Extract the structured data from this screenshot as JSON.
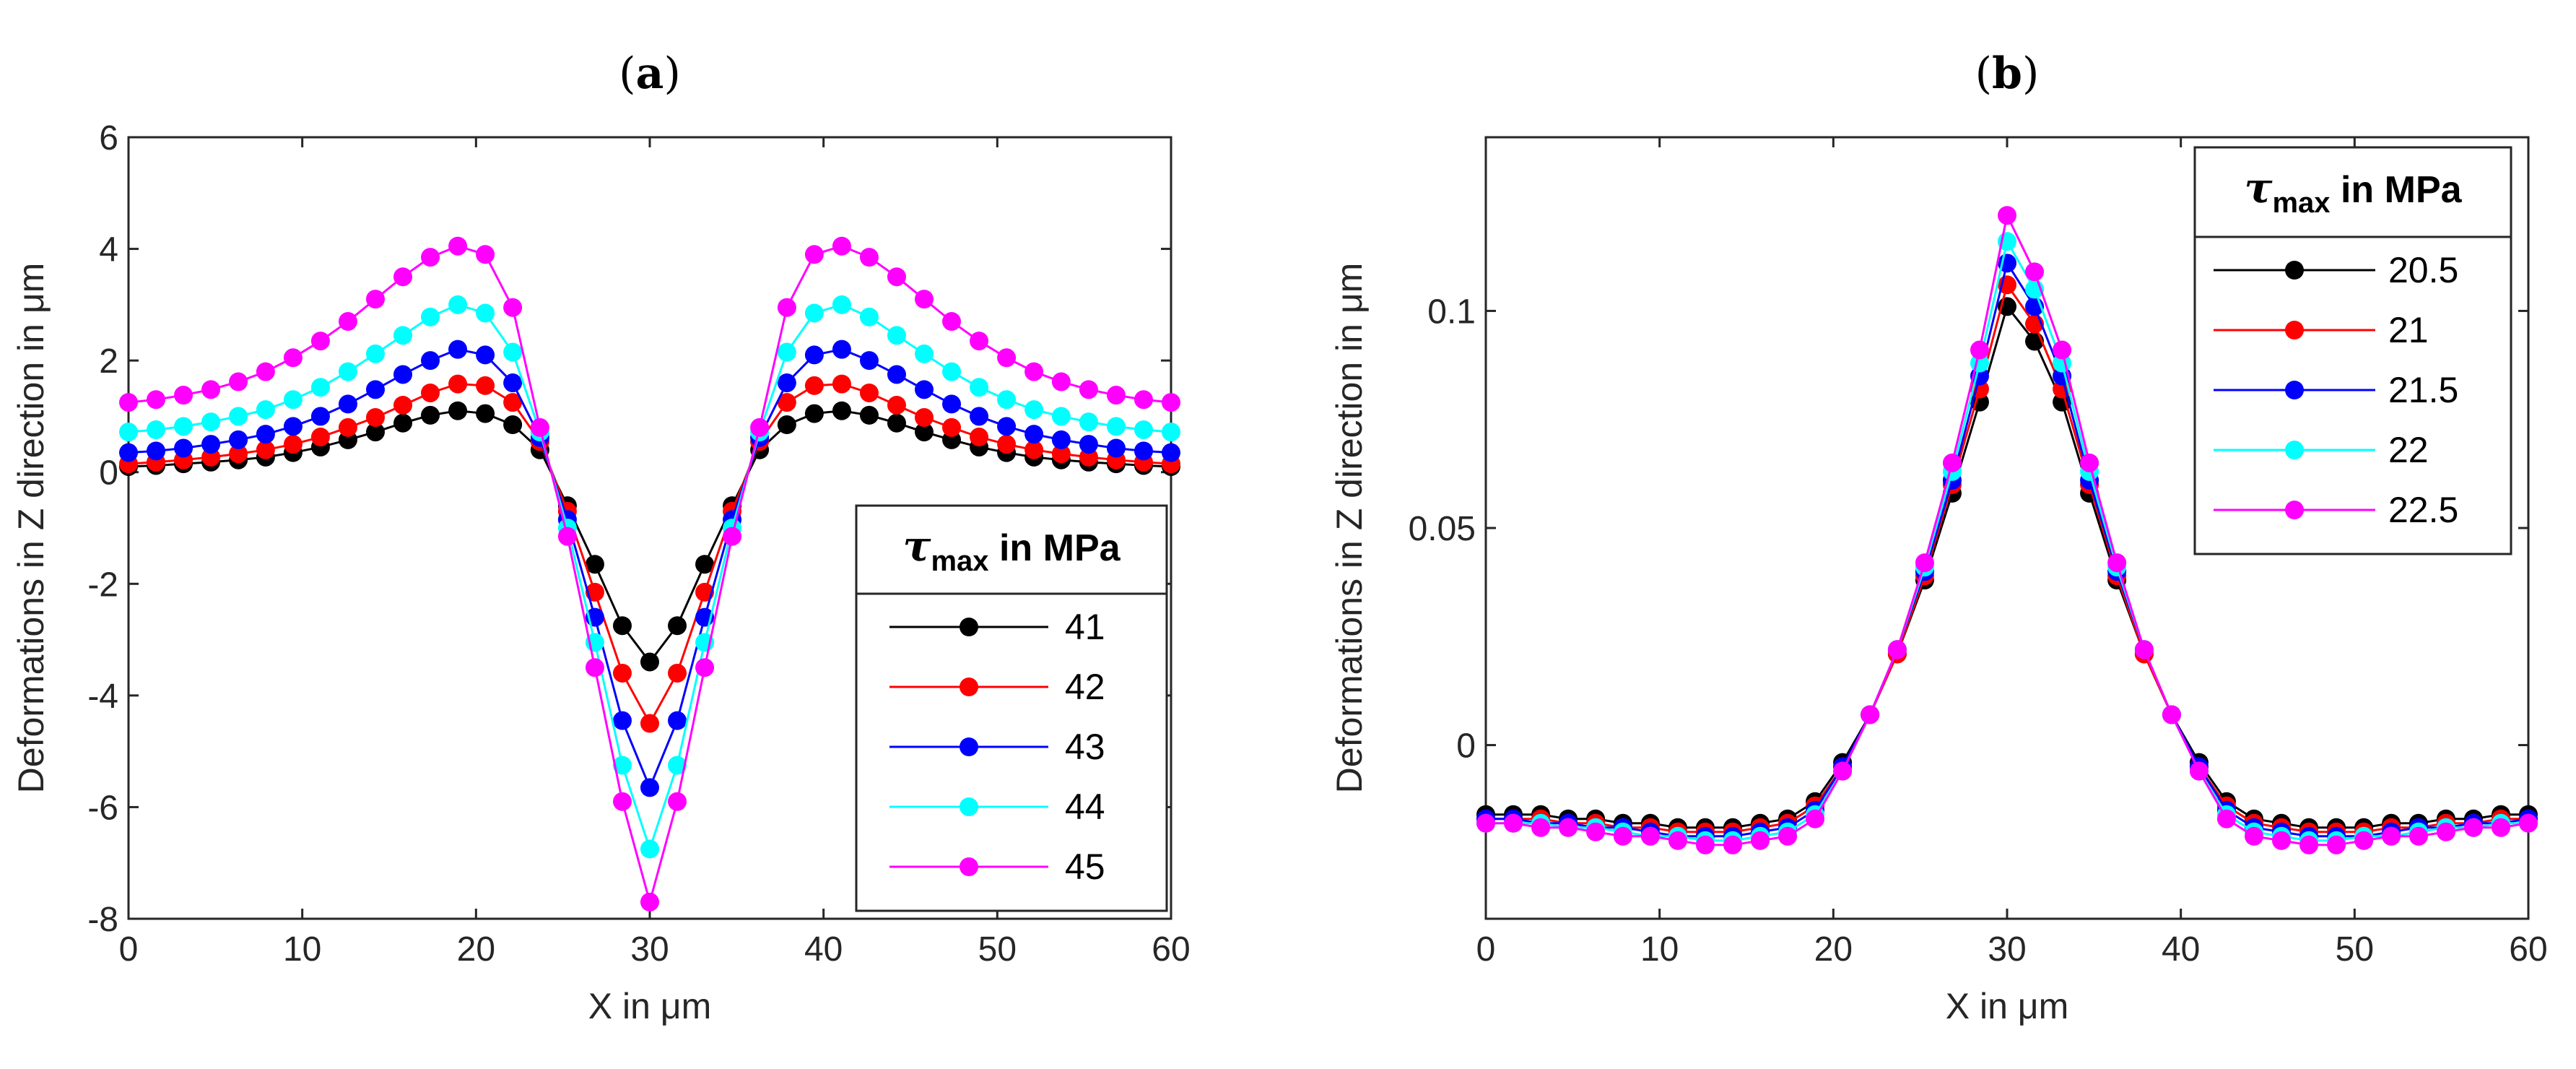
{
  "chart_data": [
    {
      "type": "line",
      "panel_label": "a",
      "title": "(a)",
      "xlabel": "X in μm",
      "ylabel": "Deformations in Z direction in μm",
      "xlim": [
        0,
        60
      ],
      "ylim": [
        -8,
        6
      ],
      "xticks": [
        0,
        10,
        20,
        30,
        40,
        50,
        60
      ],
      "xtick_labels": [
        "0",
        "10",
        "20",
        "30",
        "40",
        "50",
        "60"
      ],
      "yticks": [
        -8,
        -6,
        -4,
        -2,
        0,
        2,
        4,
        6
      ],
      "ytick_labels": [
        "-8",
        "-6",
        "-4",
        "-2",
        "0",
        "2",
        "4",
        "6"
      ],
      "grid": false,
      "legend": {
        "title_symbol": "τ",
        "title_subscript": "max",
        "title_suffix": " in MPa",
        "placement": "bottom-right"
      },
      "x": [
        0,
        1.58,
        3.16,
        4.74,
        6.32,
        7.89,
        9.47,
        11.05,
        12.63,
        14.21,
        15.79,
        17.37,
        18.95,
        20.53,
        22.11,
        23.68,
        25.26,
        26.84,
        28.42,
        30.0,
        31.58,
        33.16,
        34.74,
        36.32,
        37.89,
        39.47,
        41.05,
        42.63,
        44.21,
        45.79,
        47.37,
        48.95,
        50.53,
        52.11,
        53.68,
        55.26,
        56.84,
        58.42,
        60.0
      ],
      "series": [
        {
          "name": "41",
          "color": "#000000",
          "values": [
            0.1,
            0.12,
            0.15,
            0.18,
            0.22,
            0.27,
            0.35,
            0.45,
            0.58,
            0.72,
            0.88,
            1.02,
            1.1,
            1.05,
            0.85,
            0.4,
            -0.6,
            -1.65,
            -2.75,
            -3.4,
            -2.75,
            -1.65,
            -0.6,
            0.4,
            0.85,
            1.05,
            1.1,
            1.02,
            0.88,
            0.72,
            0.58,
            0.45,
            0.35,
            0.27,
            0.22,
            0.18,
            0.15,
            0.12,
            0.1
          ]
        },
        {
          "name": "42",
          "color": "#ff0000",
          "values": [
            0.15,
            0.18,
            0.22,
            0.27,
            0.33,
            0.4,
            0.5,
            0.63,
            0.8,
            0.98,
            1.2,
            1.42,
            1.58,
            1.55,
            1.25,
            0.55,
            -0.7,
            -2.15,
            -3.6,
            -4.5,
            -3.6,
            -2.15,
            -0.7,
            0.55,
            1.25,
            1.55,
            1.58,
            1.42,
            1.2,
            0.98,
            0.8,
            0.63,
            0.5,
            0.4,
            0.33,
            0.27,
            0.22,
            0.18,
            0.15
          ]
        },
        {
          "name": "43",
          "color": "#0000ff",
          "values": [
            0.35,
            0.38,
            0.43,
            0.5,
            0.58,
            0.68,
            0.82,
            1.0,
            1.22,
            1.48,
            1.75,
            2.0,
            2.2,
            2.1,
            1.6,
            0.62,
            -0.85,
            -2.6,
            -4.45,
            -5.65,
            -4.45,
            -2.6,
            -0.85,
            0.62,
            1.6,
            2.1,
            2.2,
            2.0,
            1.75,
            1.48,
            1.22,
            1.0,
            0.82,
            0.68,
            0.58,
            0.5,
            0.43,
            0.38,
            0.35
          ]
        },
        {
          "name": "44",
          "color": "#00ffff",
          "values": [
            0.72,
            0.76,
            0.82,
            0.9,
            1.0,
            1.12,
            1.3,
            1.52,
            1.8,
            2.12,
            2.45,
            2.78,
            3.0,
            2.85,
            2.15,
            0.72,
            -1.0,
            -3.05,
            -5.25,
            -6.75,
            -5.25,
            -3.05,
            -1.0,
            0.72,
            2.15,
            2.85,
            3.0,
            2.78,
            2.45,
            2.12,
            1.8,
            1.52,
            1.3,
            1.12,
            1.0,
            0.9,
            0.82,
            0.76,
            0.72
          ]
        },
        {
          "name": "45",
          "color": "#ff00ff",
          "values": [
            1.25,
            1.3,
            1.38,
            1.48,
            1.62,
            1.8,
            2.05,
            2.35,
            2.7,
            3.1,
            3.5,
            3.85,
            4.05,
            3.9,
            2.95,
            0.8,
            -1.15,
            -3.5,
            -5.9,
            -7.7,
            -5.9,
            -3.5,
            -1.15,
            0.8,
            2.95,
            3.9,
            4.05,
            3.85,
            3.5,
            3.1,
            2.7,
            2.35,
            2.05,
            1.8,
            1.62,
            1.48,
            1.38,
            1.3,
            1.25
          ]
        }
      ]
    },
    {
      "type": "line",
      "panel_label": "b",
      "title": "(b)",
      "xlabel": "X in μm",
      "ylabel": "Deformations in Z direction in μm",
      "xlim": [
        0,
        60
      ],
      "ylim": [
        -0.04,
        0.14
      ],
      "xticks": [
        0,
        10,
        20,
        30,
        40,
        50,
        60
      ],
      "xtick_labels": [
        "0",
        "10",
        "20",
        "30",
        "40",
        "50",
        "60"
      ],
      "yticks": [
        0,
        0.05,
        0.1
      ],
      "ytick_labels": [
        "0",
        "0.05",
        "0.1"
      ],
      "grid": false,
      "legend": {
        "title_symbol": "τ",
        "title_subscript": "max",
        "title_suffix": " in MPa",
        "placement": "top-right"
      },
      "x": [
        0,
        1.58,
        3.16,
        4.74,
        6.32,
        7.89,
        9.47,
        11.05,
        12.63,
        14.21,
        15.79,
        17.37,
        18.95,
        20.53,
        22.11,
        23.68,
        25.26,
        26.84,
        28.42,
        30.0,
        31.58,
        33.16,
        34.74,
        36.32,
        37.89,
        39.47,
        41.05,
        42.63,
        44.21,
        45.79,
        47.37,
        48.95,
        50.53,
        52.11,
        53.68,
        55.26,
        56.84,
        58.42,
        60.0
      ],
      "series": [
        {
          "name": "20.5",
          "color": "#000000",
          "values": [
            -0.016,
            -0.016,
            -0.016,
            -0.017,
            -0.017,
            -0.018,
            -0.018,
            -0.019,
            -0.019,
            -0.019,
            -0.018,
            -0.017,
            -0.013,
            -0.004,
            0.007,
            0.021,
            0.038,
            0.058,
            0.079,
            0.101,
            0.093,
            0.079,
            0.058,
            0.038,
            0.021,
            0.007,
            -0.004,
            -0.013,
            -0.017,
            -0.018,
            -0.019,
            -0.019,
            -0.019,
            -0.018,
            -0.018,
            -0.017,
            -0.017,
            -0.016,
            -0.016
          ]
        },
        {
          "name": "21",
          "color": "#ff0000",
          "values": [
            -0.017,
            -0.017,
            -0.017,
            -0.018,
            -0.018,
            -0.019,
            -0.019,
            -0.02,
            -0.02,
            -0.02,
            -0.019,
            -0.018,
            -0.014,
            -0.005,
            0.007,
            0.021,
            0.039,
            0.06,
            0.082,
            0.106,
            0.097,
            0.082,
            0.06,
            0.039,
            0.021,
            0.007,
            -0.005,
            -0.014,
            -0.018,
            -0.019,
            -0.02,
            -0.02,
            -0.02,
            -0.019,
            -0.019,
            -0.018,
            -0.018,
            -0.017,
            -0.017
          ]
        },
        {
          "name": "21.5",
          "color": "#0000ff",
          "values": [
            -0.017,
            -0.017,
            -0.018,
            -0.018,
            -0.019,
            -0.019,
            -0.02,
            -0.021,
            -0.021,
            -0.021,
            -0.02,
            -0.019,
            -0.015,
            -0.005,
            0.007,
            0.022,
            0.04,
            0.061,
            0.085,
            0.111,
            0.101,
            0.085,
            0.061,
            0.04,
            0.022,
            0.007,
            -0.005,
            -0.015,
            -0.019,
            -0.02,
            -0.021,
            -0.021,
            -0.021,
            -0.02,
            -0.019,
            -0.019,
            -0.018,
            -0.018,
            -0.017
          ]
        },
        {
          "name": "22",
          "color": "#00ffff",
          "values": [
            -0.018,
            -0.018,
            -0.018,
            -0.019,
            -0.019,
            -0.02,
            -0.021,
            -0.021,
            -0.022,
            -0.022,
            -0.021,
            -0.02,
            -0.016,
            -0.006,
            0.007,
            0.022,
            0.041,
            0.063,
            0.088,
            0.116,
            0.105,
            0.088,
            0.063,
            0.041,
            0.022,
            0.007,
            -0.006,
            -0.016,
            -0.02,
            -0.021,
            -0.022,
            -0.022,
            -0.021,
            -0.021,
            -0.02,
            -0.019,
            -0.019,
            -0.018,
            -0.018
          ]
        },
        {
          "name": "22.5",
          "color": "#ff00ff",
          "values": [
            -0.018,
            -0.018,
            -0.019,
            -0.019,
            -0.02,
            -0.021,
            -0.021,
            -0.022,
            -0.023,
            -0.023,
            -0.022,
            -0.021,
            -0.017,
            -0.006,
            0.007,
            0.022,
            0.042,
            0.065,
            0.091,
            0.122,
            0.109,
            0.091,
            0.065,
            0.042,
            0.022,
            0.007,
            -0.006,
            -0.017,
            -0.021,
            -0.022,
            -0.023,
            -0.023,
            -0.022,
            -0.021,
            -0.021,
            -0.02,
            -0.019,
            -0.019,
            -0.018
          ]
        }
      ]
    }
  ]
}
